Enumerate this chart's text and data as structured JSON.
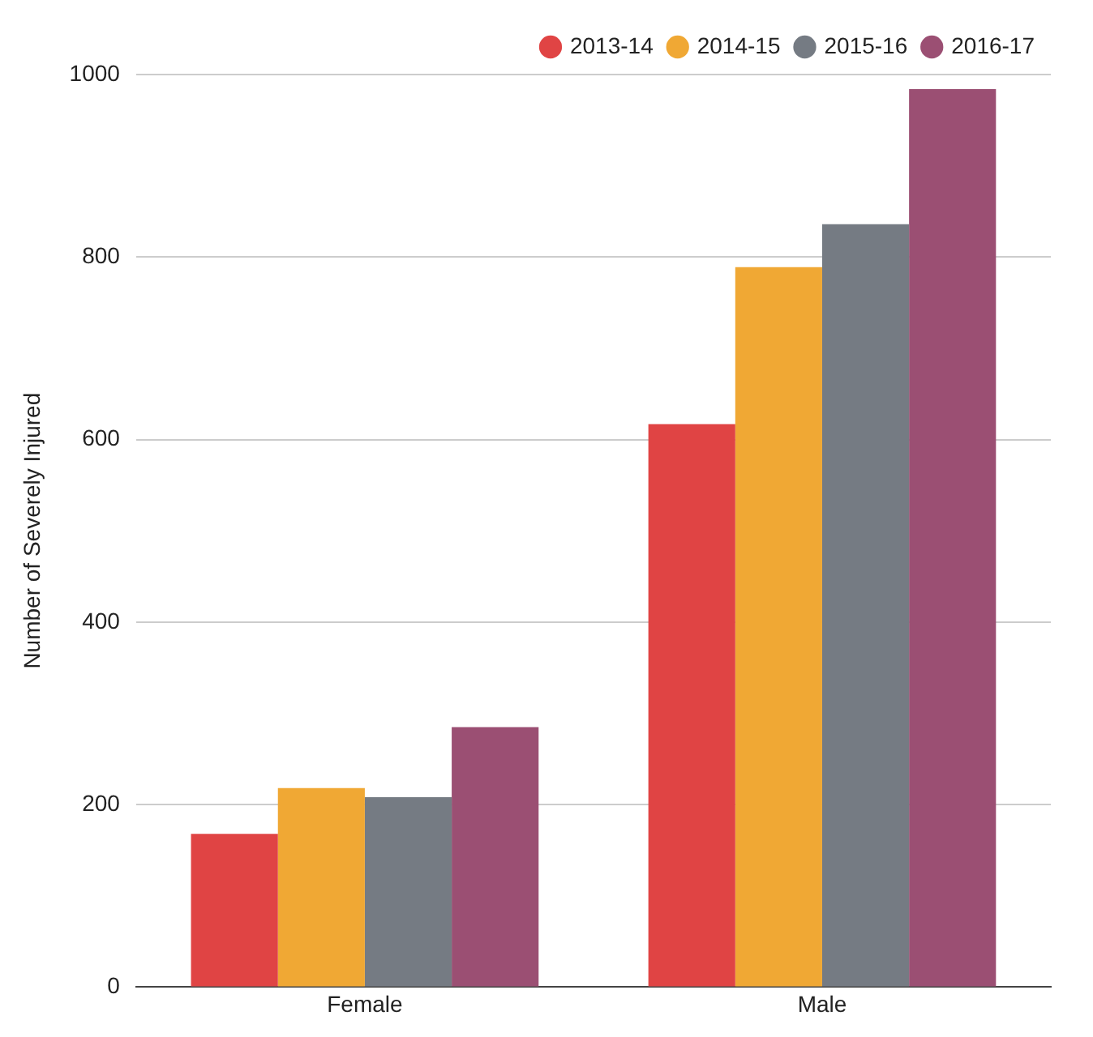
{
  "chart_data": {
    "type": "bar",
    "ylabel": "Number of Severely Injured",
    "categories": [
      "Female",
      "Male"
    ],
    "series": [
      {
        "name": "2013-14",
        "color": "#e04444",
        "values": [
          168,
          617
        ]
      },
      {
        "name": "2014-15",
        "color": "#f0a834",
        "values": [
          218,
          789
        ]
      },
      {
        "name": "2015-16",
        "color": "#757b83",
        "values": [
          208,
          836
        ]
      },
      {
        "name": "2016-17",
        "color": "#9b4f73",
        "values": [
          285,
          984
        ]
      }
    ],
    "ylim": [
      0,
      1000
    ],
    "yticks": [
      0,
      200,
      400,
      600,
      800,
      1000
    ],
    "grid": "y",
    "legend": "top right"
  }
}
